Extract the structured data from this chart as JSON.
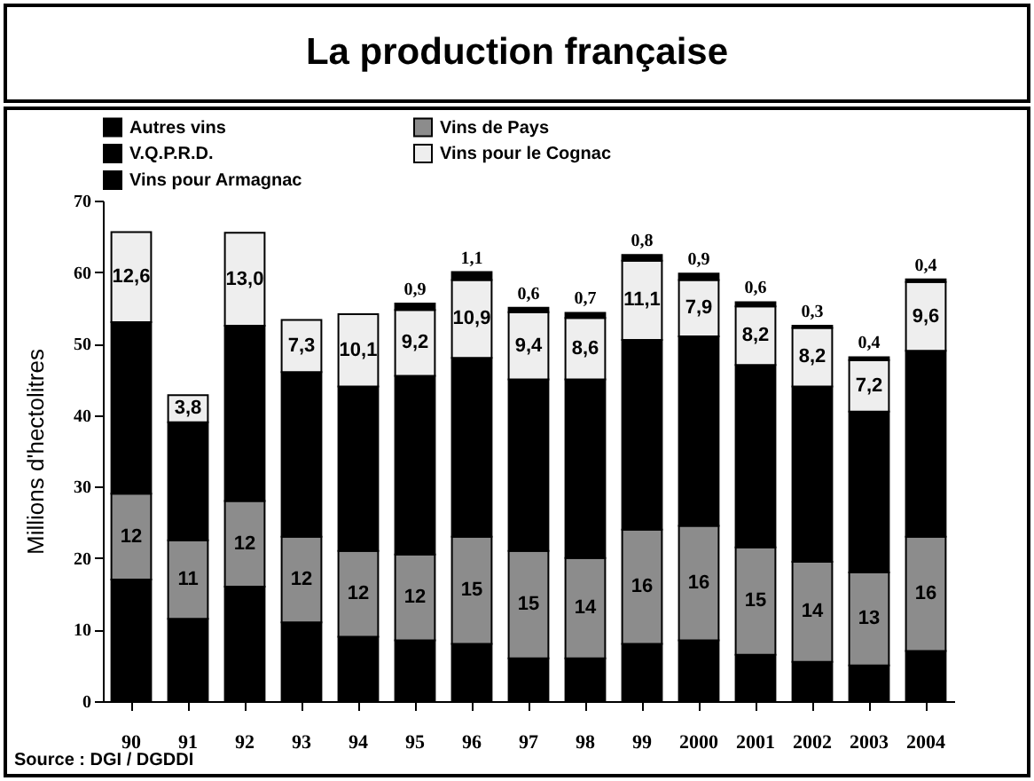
{
  "chart_data": {
    "type": "bar",
    "title": "La production française",
    "ylabel": "Millions d'hectolitres",
    "categories": [
      "90",
      "91",
      "92",
      "93",
      "94",
      "95",
      "96",
      "97",
      "98",
      "99",
      "2000",
      "2001",
      "2002",
      "2003",
      "2004"
    ],
    "stacked": true,
    "legend": "top",
    "grid": false,
    "ylim": [
      0,
      70
    ],
    "yticks": [
      0,
      10,
      20,
      30,
      40,
      50,
      60,
      70
    ],
    "series": [
      {
        "name": "Autres vins",
        "color": "#000000",
        "values": [
          17,
          11.5,
          16,
          11,
          9,
          8.5,
          8,
          6,
          6,
          8,
          8.5,
          6.5,
          5.5,
          5,
          7
        ]
      },
      {
        "name": "Vins de Pays",
        "color": "#8c8c8c",
        "values": [
          12,
          11,
          12,
          12,
          12,
          12,
          15,
          15,
          14,
          16,
          16,
          15,
          14,
          13,
          16
        ],
        "value_labels": [
          "12",
          "11",
          "12",
          "12",
          "12",
          "12",
          "15",
          "15",
          "14",
          "16",
          "16",
          "15",
          "14",
          "13",
          "16"
        ]
      },
      {
        "name": "V.Q.P.R.D.",
        "color": "#000000",
        "values": [
          24,
          16.5,
          24.5,
          23,
          23,
          25,
          25,
          24,
          25,
          26.5,
          26.5,
          25.5,
          24.5,
          22.5,
          26
        ]
      },
      {
        "name": "Vins pour le Cognac",
        "color": "#eeeeee",
        "values": [
          12.6,
          3.8,
          13.0,
          7.3,
          10.1,
          9.2,
          10.9,
          9.4,
          8.6,
          11.1,
          7.9,
          8.2,
          8.2,
          7.2,
          9.6
        ],
        "value_labels": [
          "12,6",
          "3,8",
          "13,0",
          "7,3",
          "10,1",
          "9,2",
          "10,9",
          "9,4",
          "8,6",
          "11,1",
          "7,9",
          "8,2",
          "8,2",
          "7,2",
          "9,6"
        ]
      },
      {
        "name": "Vins pour Armagnac",
        "color": "#000000",
        "values": [
          null,
          null,
          null,
          null,
          null,
          0.9,
          1.1,
          0.6,
          0.7,
          0.8,
          0.9,
          0.6,
          0.3,
          0.4,
          0.4
        ],
        "value_labels": [
          null,
          null,
          null,
          null,
          null,
          "0,9",
          "1,1",
          "0,6",
          "0,7",
          "0,8",
          "0,9",
          "0,6",
          "0,3",
          "0,4",
          "0,4"
        ]
      }
    ],
    "annotations": [
      "Source : DGI / DGDDI"
    ]
  }
}
